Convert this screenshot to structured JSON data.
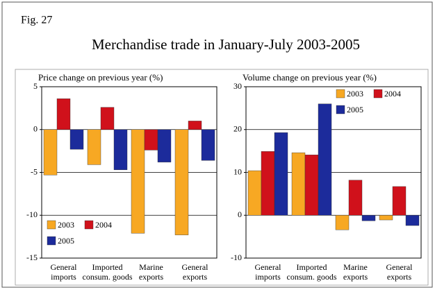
{
  "figure": {
    "label": "Fig. 27",
    "title": "Merchandise trade in January-July 2003-2005"
  },
  "chart_data": [
    {
      "type": "bar",
      "ylabel": "Price change on previous year (%)",
      "categories": [
        [
          "General",
          "imports"
        ],
        [
          "Imported",
          "consum. goods"
        ],
        [
          "Marine",
          "exports"
        ],
        [
          "General",
          "exports"
        ]
      ],
      "series": [
        {
          "name": "2003",
          "color": "#f7a823",
          "values": [
            -5.3,
            -4.1,
            -12.1,
            -12.3
          ]
        },
        {
          "name": "2004",
          "color": "#d0111b",
          "values": [
            3.6,
            2.6,
            -2.4,
            1.0
          ]
        },
        {
          "name": "2005",
          "color": "#1c2b9b",
          "values": [
            -2.3,
            -4.7,
            -3.8,
            -3.6
          ]
        }
      ],
      "ylim": [
        -15,
        5
      ],
      "yticks": [
        -15,
        -10,
        -5,
        0,
        5
      ],
      "grid": true,
      "legend": "lower left"
    },
    {
      "type": "bar",
      "ylabel": "Volume change on previous year (%)",
      "categories": [
        [
          "General",
          "imports"
        ],
        [
          "Imported",
          "consum. goods"
        ],
        [
          "Marine",
          "exports"
        ],
        [
          "General",
          "exports"
        ]
      ],
      "series": [
        {
          "name": "2003",
          "color": "#f7a823",
          "values": [
            10.4,
            14.6,
            -3.4,
            -1.1
          ]
        },
        {
          "name": "2004",
          "color": "#d0111b",
          "values": [
            14.9,
            14.1,
            8.2,
            6.7
          ]
        },
        {
          "name": "2005",
          "color": "#1c2b9b",
          "values": [
            19.3,
            26.0,
            -1.3,
            -2.4
          ]
        }
      ],
      "ylim": [
        -10,
        30
      ],
      "yticks": [
        -10,
        0,
        10,
        20,
        30
      ],
      "grid": true,
      "legend": "upper right"
    }
  ]
}
